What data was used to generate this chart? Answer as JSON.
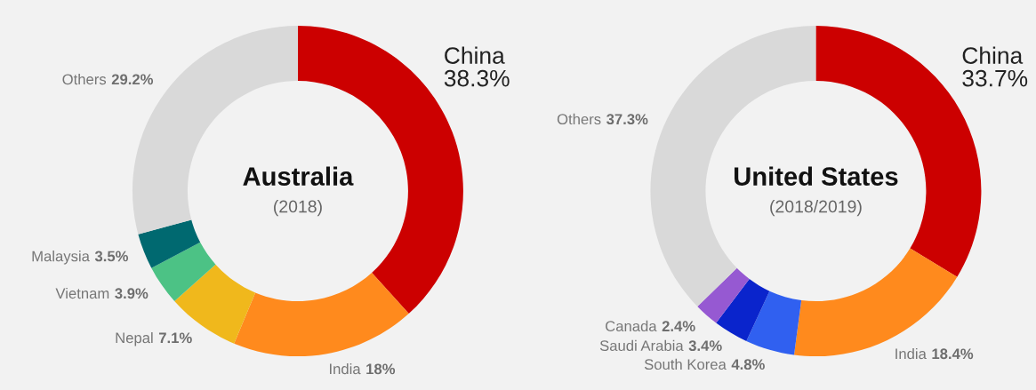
{
  "chart_data": [
    {
      "type": "donut",
      "title": "Australia",
      "subtitle": "(2018)",
      "categories": [
        "China",
        "India",
        "Nepal",
        "Vietnam",
        "Malaysia",
        "Others"
      ],
      "values": [
        38.3,
        18,
        7.1,
        3.9,
        3.5,
        29.2
      ],
      "value_labels": [
        "38.3%",
        "18%",
        "7.1%",
        "3.9%",
        "3.5%",
        "29.2%"
      ],
      "colors": [
        "#cc0000",
        "#ff8a1d",
        "#f0b81c",
        "#4cc285",
        "#006970",
        "#d9d9d9"
      ]
    },
    {
      "type": "donut",
      "title": "United States",
      "subtitle": "(2018/2019)",
      "categories": [
        "China",
        "India",
        "South Korea",
        "Saudi Arabia",
        "Canada",
        "Others"
      ],
      "values": [
        33.7,
        18.4,
        4.8,
        3.4,
        2.4,
        37.3
      ],
      "value_labels": [
        "33.7%",
        "18.4%",
        "4.8%",
        "3.4%",
        "2.4%",
        "37.3%"
      ],
      "colors": [
        "#cc0000",
        "#ff8a1d",
        "#3060f0",
        "#0a24cc",
        "#9659d2",
        "#d9d9d9"
      ]
    }
  ]
}
